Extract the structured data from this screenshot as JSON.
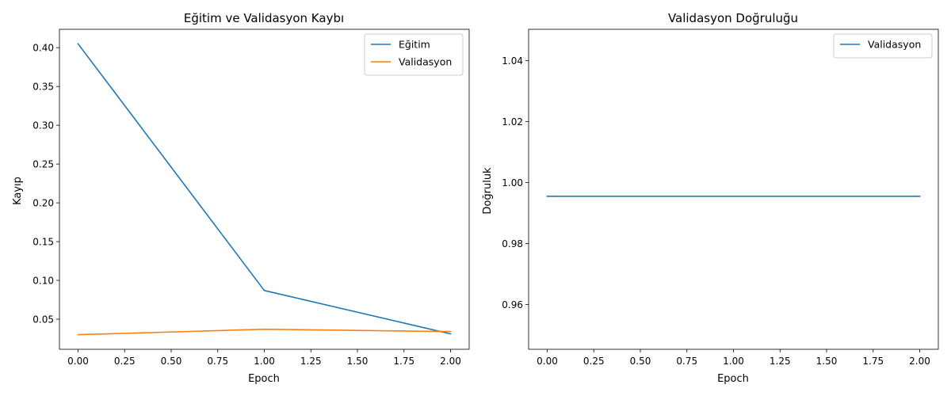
{
  "chart_data": [
    {
      "type": "line",
      "title": "Eğitim ve Validasyon Kaybı",
      "xlabel": "Epoch",
      "ylabel": "Kayıp",
      "x": [
        0,
        1,
        2
      ],
      "xlim": [
        -0.1,
        2.1
      ],
      "ylim": [
        0.0112,
        0.4237
      ],
      "xticks": [
        0.0,
        0.25,
        0.5,
        0.75,
        1.0,
        1.25,
        1.5,
        1.75,
        2.0
      ],
      "xtick_labels": [
        "0.00",
        "0.25",
        "0.50",
        "0.75",
        "1.00",
        "1.25",
        "1.50",
        "1.75",
        "2.00"
      ],
      "yticks": [
        0.05,
        0.1,
        0.15,
        0.2,
        0.25,
        0.3,
        0.35,
        0.4
      ],
      "ytick_labels": [
        "0.05",
        "0.10",
        "0.15",
        "0.20",
        "0.25",
        "0.30",
        "0.35",
        "0.40"
      ],
      "grid": false,
      "legend_position": "top-right",
      "series": [
        {
          "name": "Eğitim",
          "color": "#1f77b4",
          "values": [
            0.405,
            0.087,
            0.031
          ]
        },
        {
          "name": "Validasyon",
          "color": "#ff7f0e",
          "values": [
            0.03,
            0.037,
            0.034
          ]
        }
      ]
    },
    {
      "type": "line",
      "title": "Validasyon Doğruluğu",
      "xlabel": "Epoch",
      "ylabel": "Doğruluk",
      "x": [
        0,
        1,
        2
      ],
      "xlim": [
        -0.1,
        2.1
      ],
      "ylim": [
        0.9453,
        1.0503
      ],
      "xticks": [
        0.0,
        0.25,
        0.5,
        0.75,
        1.0,
        1.25,
        1.5,
        1.75,
        2.0
      ],
      "xtick_labels": [
        "0.00",
        "0.25",
        "0.50",
        "0.75",
        "1.00",
        "1.25",
        "1.50",
        "1.75",
        "2.00"
      ],
      "yticks": [
        0.96,
        0.98,
        1.0,
        1.02,
        1.04
      ],
      "ytick_labels": [
        "0.96",
        "0.98",
        "1.00",
        "1.02",
        "1.04"
      ],
      "grid": false,
      "legend_position": "top-right",
      "series": [
        {
          "name": "Validasyon",
          "color": "#1f77b4",
          "values": [
            0.9955,
            0.9955,
            0.9955
          ]
        }
      ]
    }
  ]
}
